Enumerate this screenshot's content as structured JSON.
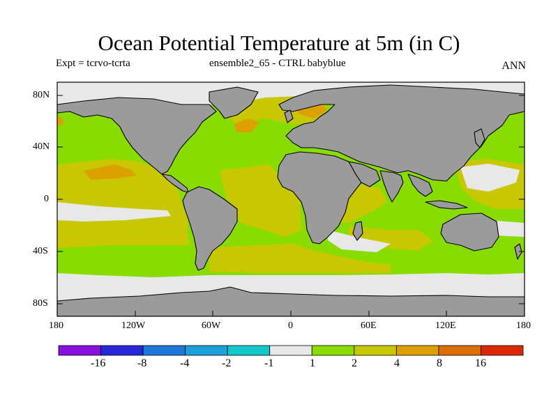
{
  "header": {
    "title": "Ocean Potential Temperature at 5m (in C)",
    "expt": "Expt = tcrvo-tcrta",
    "subtitle": "ensemble2_65 - CTRL babyblue",
    "season": "ANN"
  },
  "map": {
    "lat_labels": [
      "80N",
      "40N",
      "0",
      "40S",
      "80S"
    ],
    "lon_labels": [
      "180",
      "120W",
      "60W",
      "0",
      "60E",
      "120E",
      "180"
    ],
    "land_color": "#9b9b9b",
    "coastline_color": "#000000"
  },
  "colorbar": {
    "labels": [
      "-16",
      "-8",
      "-4",
      "-2",
      "-1",
      "1",
      "2",
      "4",
      "8",
      "16"
    ],
    "colors": [
      "#8a10e0",
      "#2828d8",
      "#1e78dc",
      "#1ea0dc",
      "#10c8c8",
      "#e8e8e8",
      "#88dc00",
      "#c8c800",
      "#dca000",
      "#dc6e00",
      "#dc2800"
    ]
  }
}
